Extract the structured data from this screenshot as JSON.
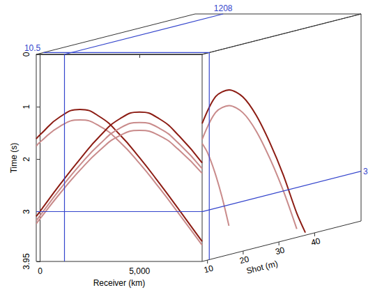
{
  "chart_data": {
    "type": "seismic_cube",
    "xlabel": "Receiver (km)",
    "ylabel": "Time (s)",
    "zlabel": "Shot (m)",
    "xlim": [
      -200,
      8150
    ],
    "xticks": [
      0,
      5000
    ],
    "ylim": [
      0,
      3.95
    ],
    "yticks": [
      0,
      1,
      2,
      3
    ],
    "zlim": [
      8.5,
      53
    ],
    "zticks": [
      10,
      20,
      30,
      40
    ],
    "slices": {
      "x": 1208,
      "y": 3,
      "z": 10.5
    },
    "slice_color": "#3344cc",
    "front": {
      "x": [
        -200,
        0,
        1000,
        2000,
        3000,
        4000,
        5000,
        6000,
        7000,
        8150
      ],
      "series": [
        {
          "color": "#8c1c13",
          "values": [
            1.61,
            1.53,
            1.19,
            1.05,
            1.19,
            1.53,
            1.97,
            2.46,
            2.97,
            3.57
          ]
        },
        {
          "color": "#c98b8b",
          "values": [
            1.75,
            1.67,
            1.37,
            1.25,
            1.37,
            1.67,
            2.08,
            2.55,
            3.05,
            3.64
          ]
        },
        {
          "color": "#8c1c13",
          "values": [
            3.09,
            2.99,
            2.48,
            2.0,
            1.56,
            1.23,
            1.1,
            1.23,
            1.56,
            2.07
          ]
        },
        {
          "color": "#c98b8b",
          "values": [
            3.17,
            3.07,
            2.57,
            2.11,
            1.71,
            1.41,
            1.3,
            1.41,
            1.71,
            2.18
          ]
        },
        {
          "color": "#c98b8b",
          "values": [
            3.23,
            3.13,
            2.65,
            2.21,
            1.83,
            1.55,
            1.45,
            1.55,
            1.83,
            2.27
          ]
        }
      ]
    },
    "side": {
      "series": [
        {
          "color": "#8c1c13",
          "z": [
            8.5,
            12.3,
            16.1,
            19.9,
            23.6,
            27.5,
            31.2,
            35,
            37.4
          ],
          "values": [
            1.32,
            0.87,
            0.81,
            1.01,
            1.42,
            2.02,
            2.69,
            3.49,
            3.9
          ]
        },
        {
          "color": "#c98b8b",
          "z": [
            8.5,
            12.3,
            16.1,
            19.9,
            23.6,
            27.5,
            31.2,
            35
          ],
          "values": [
            1.62,
            1.17,
            1.11,
            1.31,
            1.72,
            2.32,
            2.99,
            3.79
          ]
        },
        {
          "color": "#c98b8b",
          "z": [
            8.5,
            10,
            12,
            14,
            16
          ],
          "values": [
            1.7,
            1.9,
            2.3,
            2.8,
            3.4
          ]
        }
      ]
    }
  }
}
